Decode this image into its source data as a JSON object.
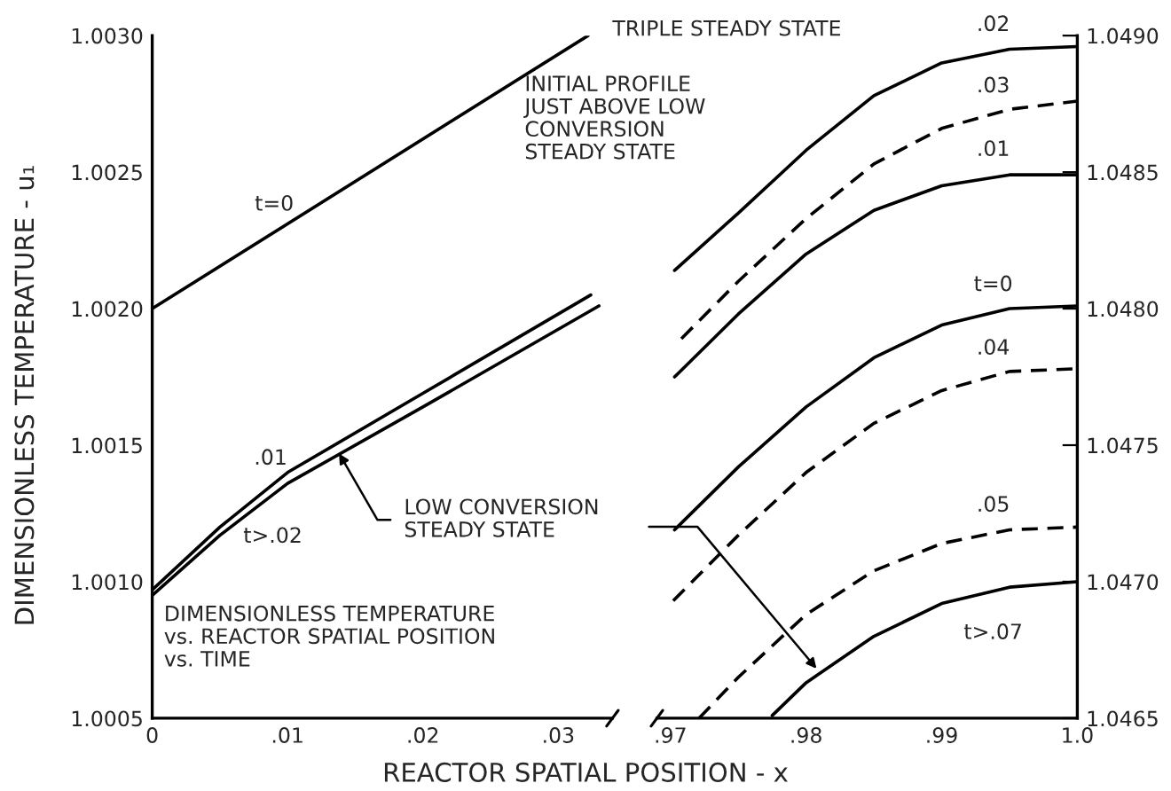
{
  "chart_data": [
    {
      "type": "line",
      "xlabel": "REACTOR SPATIAL POSITION - x",
      "ylabel": "DIMENSIONLESS TEMPERATURE - u₁",
      "xlim": [
        0,
        0.034
      ],
      "xticks": [
        {
          "value": 0,
          "label": "0"
        },
        {
          "value": 0.01,
          "label": ".01"
        },
        {
          "value": 0.02,
          "label": ".02"
        },
        {
          "value": 0.03,
          "label": ".03"
        }
      ],
      "ylim": [
        1.0005,
        1.003
      ],
      "yticks": [
        {
          "value": 1.0005,
          "label": "1.0005"
        },
        {
          "value": 1.001,
          "label": "1.0010"
        },
        {
          "value": 1.0015,
          "label": "1.0015"
        },
        {
          "value": 1.002,
          "label": "1.0020"
        },
        {
          "value": 1.0025,
          "label": "1.0025"
        },
        {
          "value": 1.003,
          "label": "1.0030"
        }
      ],
      "grid": false,
      "legend": false,
      "tick_labels": [
        "x",
        "y"
      ],
      "series": [
        {
          "name": "t=0",
          "color": "#000000",
          "line_style": "solid",
          "x": [
            0,
            0.0322
          ],
          "values": [
            1.002,
            1.003
          ]
        },
        {
          "name": ".01",
          "color": "#000000",
          "line_style": "solid",
          "x": [
            0,
            0.005,
            0.01,
            0.02,
            0.0324
          ],
          "values": [
            1.00097,
            1.0012,
            1.0014,
            1.00169,
            1.00205
          ]
        },
        {
          "name": "t>.02",
          "color": "#000000",
          "line_style": "solid",
          "x": [
            0,
            0.005,
            0.01,
            0.02,
            0.033
          ],
          "values": [
            1.00095,
            1.00117,
            1.00136,
            1.00164,
            1.00201
          ]
        }
      ],
      "annotations": [
        "TRIPLE STEADY STATE",
        "INITIAL PROFILE\nJUST ABOVE LOW\nCONVERSION\nSTEADY STATE",
        {
          "text": "LOW CONVERSION\nSTEADY STATE",
          "x": 0.0138,
          "y": 1.00147
        },
        "DIMENSIONLESS TEMPERATURE\nvs. REACTOR SPATIAL POSITION\nvs. TIME"
      ]
    },
    {
      "type": "line",
      "xlim": [
        0.969,
        1.0
      ],
      "xticks": [
        {
          "value": 0.97,
          "label": ".97"
        },
        {
          "value": 0.98,
          "label": ".98"
        },
        {
          "value": 0.99,
          "label": ".99"
        },
        {
          "value": 1.0,
          "label": "1.0"
        }
      ],
      "y2lim": [
        1.0465,
        1.049
      ],
      "y2ticks": [
        {
          "value": 1.0465,
          "label": "1.0465"
        },
        {
          "value": 1.047,
          "label": "1.0470"
        },
        {
          "value": 1.0475,
          "label": "1.0475"
        },
        {
          "value": 1.048,
          "label": "1.0480"
        },
        {
          "value": 1.0485,
          "label": "1.0485"
        },
        {
          "value": 1.049,
          "label": "1.0490"
        }
      ],
      "grid": false,
      "legend": false,
      "tick_labels": [
        "x",
        "y2"
      ],
      "series": [
        {
          "name": ".02",
          "color": "#000000",
          "axis": "y2",
          "line_style": "solid",
          "x": [
            0.9703,
            0.975,
            0.98,
            0.985,
            0.99,
            0.995,
            1.0
          ],
          "values": [
            1.04814,
            1.04835,
            1.04858,
            1.04878,
            1.0489,
            1.04895,
            1.04896
          ]
        },
        {
          "name": ".03",
          "color": "#000000",
          "axis": "y2",
          "line_style": "dashed",
          "x": [
            0.9708,
            0.975,
            0.98,
            0.985,
            0.99,
            0.995,
            1.0
          ],
          "values": [
            1.04789,
            1.0481,
            1.04833,
            1.04853,
            1.04866,
            1.04873,
            1.04876
          ]
        },
        {
          "name": ".01",
          "color": "#000000",
          "axis": "y2",
          "line_style": "solid",
          "x": [
            0.9703,
            0.975,
            0.98,
            0.985,
            0.99,
            0.995,
            1.0
          ],
          "values": [
            1.04775,
            1.04798,
            1.0482,
            1.04836,
            1.04845,
            1.04849,
            1.04849
          ]
        },
        {
          "name": "t=0",
          "color": "#000000",
          "axis": "y2",
          "line_style": "solid",
          "x": [
            0.9703,
            0.975,
            0.98,
            0.985,
            0.99,
            0.995,
            1.0
          ],
          "values": [
            1.04719,
            1.04742,
            1.04764,
            1.04782,
            1.04794,
            1.048,
            1.04801
          ]
        },
        {
          "name": ".04",
          "color": "#000000",
          "axis": "y2",
          "line_style": "dashed",
          "x": [
            0.9702,
            0.975,
            0.98,
            0.985,
            0.99,
            0.995,
            1.0
          ],
          "values": [
            1.04693,
            1.04717,
            1.0474,
            1.04758,
            1.0477,
            1.04777,
            1.04778
          ]
        },
        {
          "name": ".05",
          "color": "#000000",
          "axis": "y2",
          "line_style": "dashed",
          "x": [
            0.9721,
            0.975,
            0.98,
            0.985,
            0.99,
            0.995,
            1.0
          ],
          "values": [
            1.0465,
            1.04665,
            1.04688,
            1.04704,
            1.04714,
            1.04719,
            1.0472
          ]
        },
        {
          "name": "t>.07",
          "color": "#000000",
          "axis": "y2",
          "line_style": "solid",
          "x": [
            0.9775,
            0.98,
            0.985,
            0.99,
            0.995,
            1.0
          ],
          "values": [
            1.04651,
            1.04663,
            1.0468,
            1.04692,
            1.04698,
            1.047
          ]
        }
      ]
    }
  ]
}
